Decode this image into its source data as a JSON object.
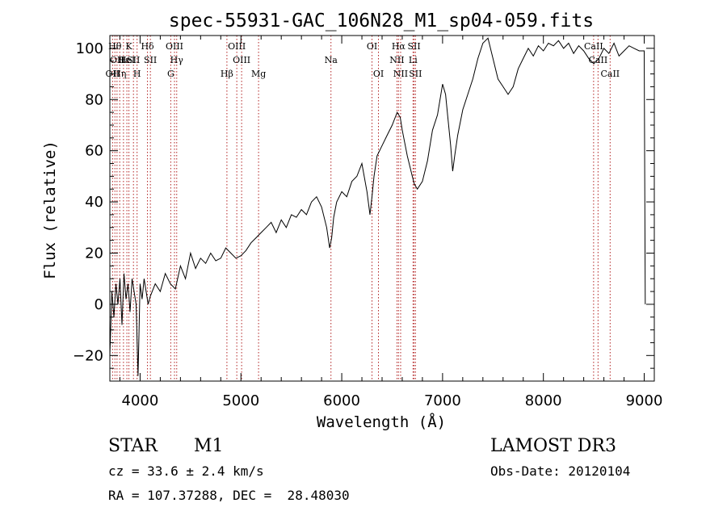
{
  "chart_data": {
    "type": "line",
    "title": "spec-55931-GAC_106N28_M1_sp04-059.fits",
    "xlabel": "Wavelength (Å)",
    "ylabel": "Flux (relative)",
    "xlim": [
      3700,
      9100
    ],
    "ylim": [
      -30,
      105
    ],
    "xticks": [
      4000,
      5000,
      6000,
      7000,
      8000,
      9000
    ],
    "yticks": [
      -20,
      0,
      20,
      40,
      60,
      80,
      100
    ],
    "series": [
      {
        "name": "flux",
        "x": [
          3700,
          3720,
          3740,
          3760,
          3780,
          3800,
          3820,
          3840,
          3860,
          3880,
          3900,
          3920,
          3940,
          3960,
          3980,
          4000,
          4020,
          4040,
          4060,
          4080,
          4100,
          4150,
          4200,
          4250,
          4300,
          4350,
          4400,
          4450,
          4500,
          4550,
          4600,
          4650,
          4700,
          4750,
          4800,
          4850,
          4900,
          4950,
          5000,
          5050,
          5100,
          5150,
          5200,
          5250,
          5300,
          5350,
          5400,
          5450,
          5500,
          5550,
          5600,
          5650,
          5700,
          5750,
          5800,
          5850,
          5880,
          5900,
          5920,
          5950,
          6000,
          6050,
          6100,
          6150,
          6200,
          6250,
          6280,
          6300,
          6320,
          6350,
          6400,
          6450,
          6500,
          6550,
          6580,
          6600,
          6650,
          6700,
          6720,
          6750,
          6800,
          6850,
          6900,
          6950,
          7000,
          7030,
          7050,
          7080,
          7100,
          7120,
          7150,
          7200,
          7250,
          7300,
          7350,
          7400,
          7450,
          7500,
          7550,
          7600,
          7650,
          7700,
          7750,
          7800,
          7850,
          7900,
          7950,
          8000,
          8050,
          8100,
          8150,
          8200,
          8250,
          8300,
          8350,
          8400,
          8450,
          8500,
          8550,
          8600,
          8650,
          8700,
          8750,
          8800,
          8850,
          8900,
          8950,
          9000,
          9010
        ],
        "y": [
          -20,
          5,
          -5,
          8,
          0,
          10,
          -8,
          12,
          2,
          8,
          -3,
          10,
          5,
          0,
          -28,
          8,
          2,
          10,
          5,
          0,
          3,
          8,
          5,
          12,
          8,
          6,
          15,
          10,
          20,
          14,
          18,
          16,
          20,
          17,
          18,
          22,
          20,
          18,
          19,
          21,
          24,
          26,
          28,
          30,
          32,
          28,
          33,
          30,
          35,
          34,
          37,
          35,
          40,
          42,
          38,
          30,
          22,
          26,
          34,
          40,
          44,
          42,
          48,
          50,
          55,
          44,
          35,
          42,
          50,
          58,
          62,
          66,
          70,
          75,
          73,
          68,
          58,
          50,
          47,
          45,
          48,
          56,
          68,
          74,
          86,
          82,
          74,
          62,
          52,
          58,
          66,
          76,
          82,
          88,
          96,
          102,
          104,
          96,
          88,
          85,
          82,
          85,
          92,
          96,
          100,
          97,
          101,
          99,
          102,
          101,
          103,
          100,
          102,
          98,
          101,
          99,
          96,
          94,
          96,
          100,
          98,
          102,
          97,
          99,
          101,
          100,
          99,
          99,
          0
        ],
        "style": {
          "color": "#000000"
        }
      }
    ],
    "lines": [
      {
        "wave": 3727,
        "label": "OII",
        "row": 3
      },
      {
        "wave": 3750,
        "label": "Hθ",
        "row": 1
      },
      {
        "wave": 3771,
        "label": "OII",
        "row": 2
      },
      {
        "wave": 3798,
        "label": "Hη",
        "row": 3
      },
      {
        "wave": 3835,
        "label": "Hε",
        "row": 2
      },
      {
        "wave": 3869,
        "label": "HeI",
        "row": 2
      },
      {
        "wave": 3889,
        "label": "K",
        "row": 1
      },
      {
        "wave": 3934,
        "label": "SII",
        "row": 2
      },
      {
        "wave": 3970,
        "label": "H",
        "row": 3
      },
      {
        "wave": 4073,
        "label": "Hδ",
        "row": 1
      },
      {
        "wave": 4102,
        "label": "SII",
        "row": 2
      },
      {
        "wave": 4304,
        "label": "G",
        "row": 3
      },
      {
        "wave": 4341,
        "label": "OIII",
        "row": 1
      },
      {
        "wave": 4363,
        "label": "Hγ",
        "row": 2
      },
      {
        "wave": 4861,
        "label": "Hβ",
        "row": 3
      },
      {
        "wave": 4959,
        "label": "OIII",
        "row": 1
      },
      {
        "wave": 5007,
        "label": "OIII",
        "row": 2
      },
      {
        "wave": 5175,
        "label": "Mg",
        "row": 3
      },
      {
        "wave": 5893,
        "label": "Na",
        "row": 2
      },
      {
        "wave": 6300,
        "label": "OI",
        "row": 1
      },
      {
        "wave": 6364,
        "label": "OI",
        "row": 3
      },
      {
        "wave": 6548,
        "label": "NII",
        "row": 2
      },
      {
        "wave": 6563,
        "label": "Hα",
        "row": 1
      },
      {
        "wave": 6584,
        "label": "NII",
        "row": 3
      },
      {
        "wave": 6707,
        "label": "Li",
        "row": 2
      },
      {
        "wave": 6717,
        "label": "SII",
        "row": 1
      },
      {
        "wave": 6731,
        "label": "SII",
        "row": 3
      },
      {
        "wave": 8498,
        "label": "CaII",
        "row": 1
      },
      {
        "wave": 8542,
        "label": "CaII",
        "row": 2
      },
      {
        "wave": 8662,
        "label": "CaII",
        "row": 3
      }
    ]
  },
  "info": {
    "class": "STAR",
    "subclass": "M1",
    "survey": "LAMOST DR3",
    "cz": "cz = 33.6 ± 2.4 km/s",
    "obs_date": "Obs-Date: 20120104",
    "radec": "RA = 107.37288, DEC =  28.48030"
  },
  "colors": {
    "axis": "#000000",
    "spectrum": "#000000",
    "line_markers": "#b22222"
  }
}
